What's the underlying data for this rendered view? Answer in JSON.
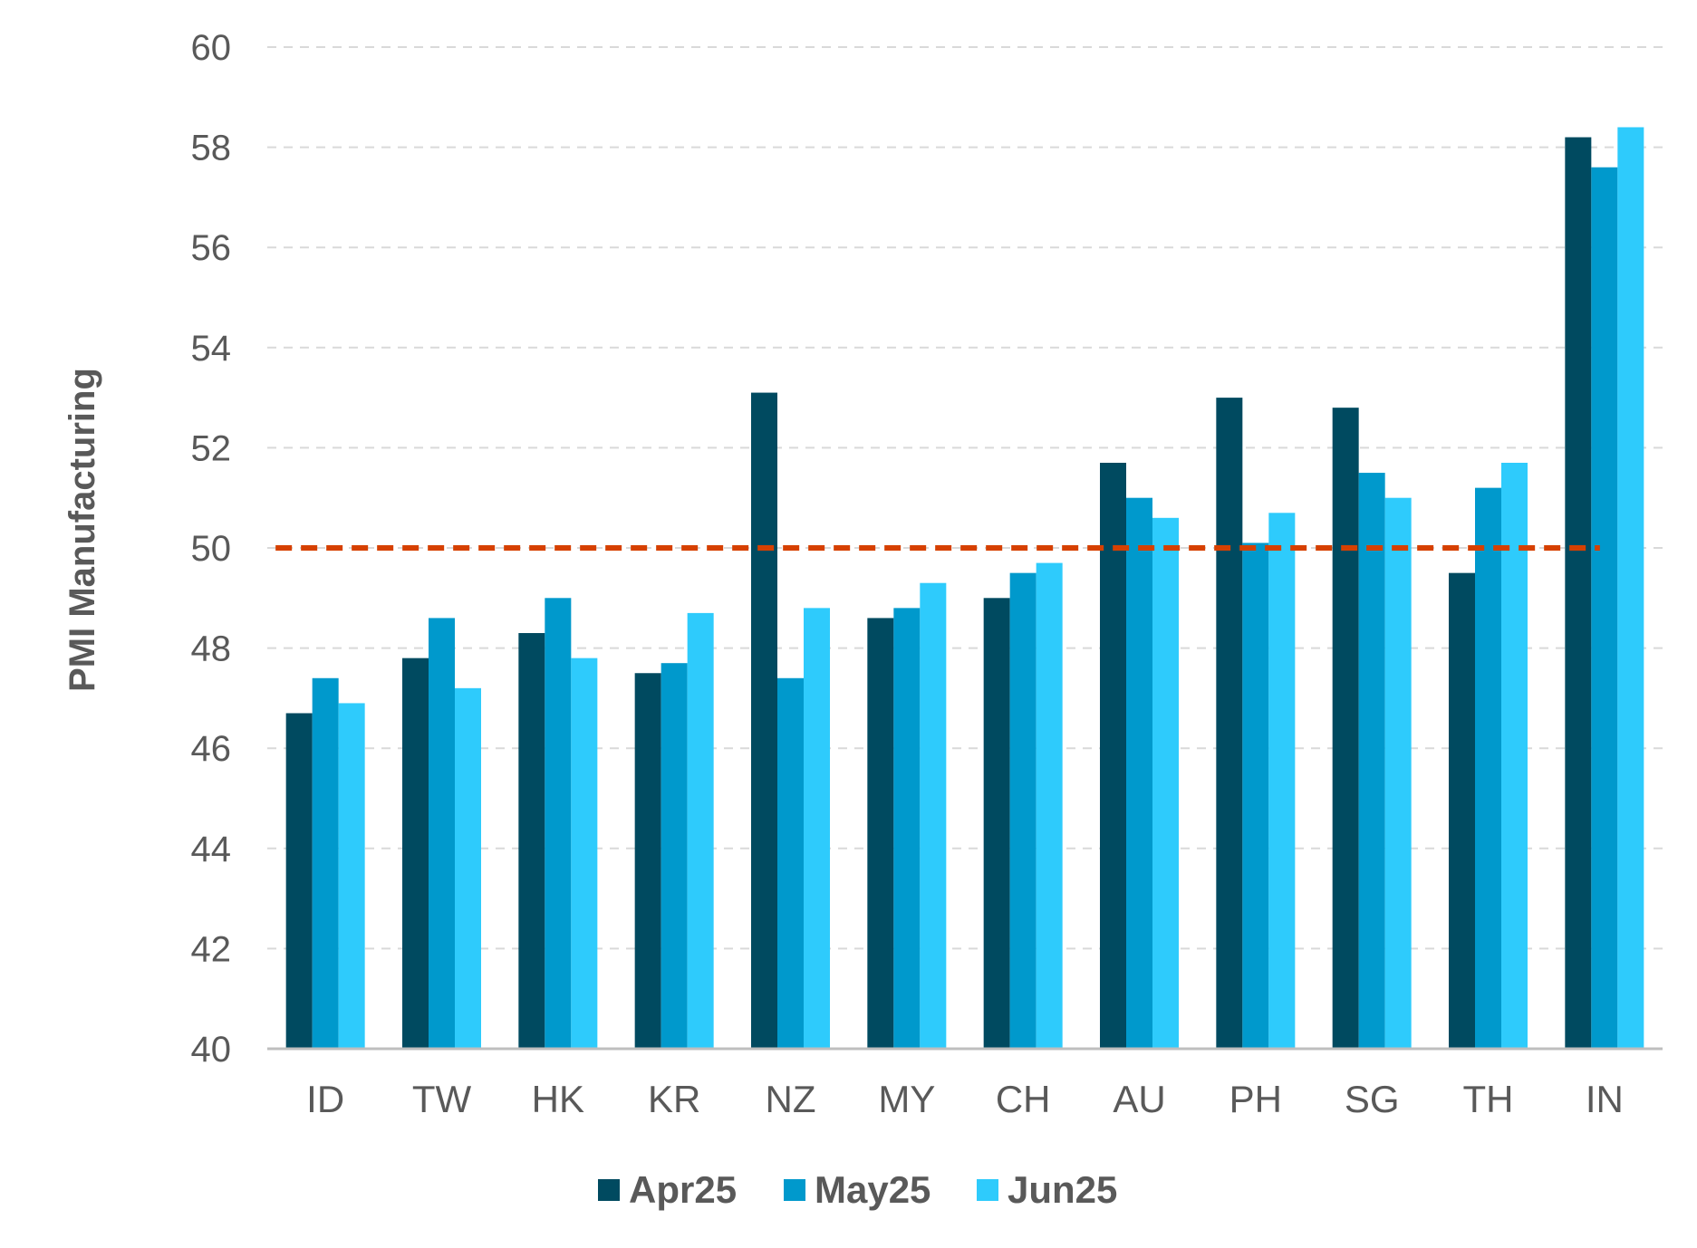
{
  "chart_data": {
    "type": "bar",
    "title": "",
    "xlabel": "",
    "ylabel": "PMI Manufacturing",
    "ylim": [
      40,
      60
    ],
    "ytick_step": 2,
    "grid": true,
    "legend_position": "bottom",
    "categories": [
      "ID",
      "TW",
      "HK",
      "KR",
      "NZ",
      "MY",
      "CH",
      "AU",
      "PH",
      "SG",
      "TH",
      "IN"
    ],
    "series": [
      {
        "name": "Apr25",
        "color": "#004a60",
        "values": [
          46.7,
          47.8,
          48.3,
          47.5,
          53.1,
          48.6,
          49.0,
          51.7,
          53.0,
          52.8,
          49.5,
          58.2
        ]
      },
      {
        "name": "May25",
        "color": "#0099cc",
        "values": [
          47.4,
          48.6,
          49.0,
          47.7,
          47.4,
          48.8,
          49.5,
          51.0,
          50.1,
          51.5,
          51.2,
          57.6
        ]
      },
      {
        "name": "Jun25",
        "color": "#2ecbfc",
        "values": [
          46.9,
          47.2,
          47.8,
          48.7,
          48.8,
          49.3,
          49.7,
          50.6,
          50.7,
          51.0,
          51.7,
          58.4
        ]
      }
    ],
    "reference_line": {
      "value": 50,
      "color": "#d64000"
    }
  }
}
